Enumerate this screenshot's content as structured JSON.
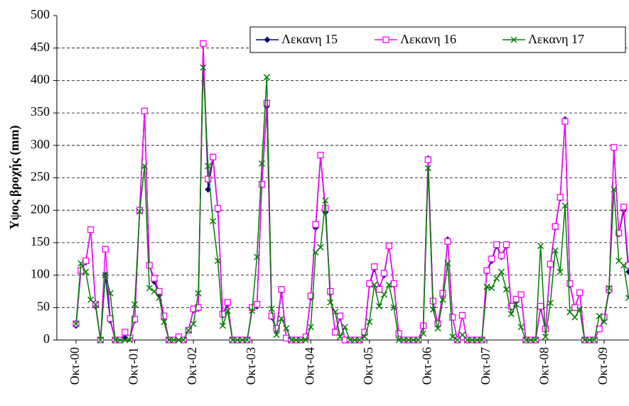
{
  "chart_data": {
    "type": "line",
    "y_label": "Υψος βροχής (mm)",
    "categories": [
      "Οκτ-00",
      null,
      null,
      null,
      null,
      null,
      null,
      null,
      null,
      null,
      null,
      null,
      "Οκτ-01",
      null,
      null,
      null,
      null,
      null,
      null,
      null,
      null,
      null,
      null,
      null,
      "Οκτ-02",
      null,
      null,
      null,
      null,
      null,
      null,
      null,
      null,
      null,
      null,
      null,
      "Οκτ-03",
      null,
      null,
      null,
      null,
      null,
      null,
      null,
      null,
      null,
      null,
      null,
      "Οκτ-04",
      null,
      null,
      null,
      null,
      null,
      null,
      null,
      null,
      null,
      null,
      null,
      "Οκτ-05",
      null,
      null,
      null,
      null,
      null,
      null,
      null,
      null,
      null,
      null,
      null,
      "Οκτ-06",
      null,
      null,
      null,
      null,
      null,
      null,
      null,
      null,
      null,
      null,
      null,
      "Οκτ-07",
      null,
      null,
      null,
      null,
      null,
      null,
      null,
      null,
      null,
      null,
      null,
      "Οκτ-08",
      null,
      null,
      null,
      null,
      null,
      null,
      null,
      null,
      null,
      null,
      null,
      "Οκτ-09",
      null,
      null,
      null,
      null,
      null
    ],
    "series": [
      {
        "name": "Λεκανη 15",
        "color": "#000080",
        "marker": "diamond",
        "values": [
          22,
          107,
          120,
          170,
          52,
          0,
          100,
          30,
          0,
          0,
          3,
          2,
          30,
          200,
          352,
          115,
          90,
          70,
          35,
          0,
          0,
          3,
          0,
          15,
          46,
          48,
          455,
          232,
          280,
          200,
          38,
          55,
          0,
          0,
          0,
          0,
          48,
          52,
          238,
          360,
          35,
          15,
          75,
          3,
          0,
          0,
          0,
          5,
          65,
          173,
          283,
          197,
          72,
          12,
          35,
          0,
          0,
          0,
          0,
          10,
          85,
          110,
          80,
          100,
          145,
          85,
          10,
          0,
          0,
          0,
          0,
          20,
          280,
          58,
          25,
          70,
          155,
          35,
          0,
          38,
          0,
          0,
          0,
          0,
          105,
          122,
          145,
          128,
          145,
          50,
          60,
          70,
          0,
          0,
          0,
          50,
          15,
          115,
          173,
          218,
          340,
          85,
          50,
          73,
          0,
          0,
          0,
          17,
          33,
          75,
          295,
          163,
          200,
          105
        ]
      },
      {
        "name": "Λεκανη 16",
        "color": "#ff00ff",
        "marker": "square",
        "values": [
          25,
          107,
          122,
          170,
          55,
          0,
          140,
          33,
          0,
          0,
          12,
          3,
          32,
          200,
          353,
          115,
          95,
          75,
          37,
          0,
          0,
          5,
          0,
          15,
          48,
          50,
          457,
          248,
          282,
          203,
          40,
          58,
          0,
          0,
          0,
          0,
          50,
          55,
          240,
          365,
          37,
          18,
          78,
          3,
          0,
          0,
          0,
          5,
          68,
          178,
          285,
          203,
          75,
          12,
          37,
          0,
          0,
          0,
          0,
          12,
          87,
          113,
          78,
          103,
          145,
          87,
          10,
          0,
          0,
          0,
          0,
          22,
          278,
          60,
          25,
          72,
          152,
          35,
          0,
          38,
          0,
          0,
          0,
          0,
          107,
          125,
          147,
          130,
          147,
          52,
          63,
          70,
          0,
          0,
          0,
          52,
          17,
          117,
          175,
          220,
          337,
          87,
          50,
          73,
          0,
          0,
          0,
          17,
          35,
          78,
          297,
          165,
          205,
          115
        ]
      },
      {
        "name": "Λεκανη 17",
        "color": "#008000",
        "marker": "x",
        "values": [
          25,
          118,
          105,
          62,
          55,
          0,
          100,
          72,
          0,
          0,
          0,
          0,
          55,
          198,
          268,
          80,
          75,
          65,
          28,
          0,
          0,
          0,
          0,
          15,
          25,
          72,
          420,
          268,
          183,
          122,
          22,
          45,
          0,
          0,
          0,
          0,
          45,
          128,
          272,
          405,
          48,
          8,
          33,
          18,
          0,
          0,
          0,
          0,
          20,
          135,
          143,
          215,
          58,
          43,
          5,
          20,
          0,
          0,
          0,
          5,
          28,
          85,
          52,
          70,
          85,
          50,
          0,
          0,
          0,
          0,
          0,
          10,
          265,
          47,
          18,
          62,
          118,
          5,
          0,
          8,
          0,
          0,
          0,
          0,
          82,
          80,
          95,
          105,
          78,
          40,
          55,
          20,
          0,
          0,
          0,
          145,
          5,
          57,
          138,
          105,
          207,
          43,
          35,
          47,
          0,
          0,
          0,
          37,
          28,
          80,
          232,
          122,
          115,
          65
        ]
      }
    ],
    "ylim": [
      0,
      500
    ],
    "yticks": [
      0,
      50,
      100,
      150,
      200,
      250,
      300,
      350,
      400,
      450,
      500
    ],
    "grid": true,
    "legend": "top-right"
  }
}
